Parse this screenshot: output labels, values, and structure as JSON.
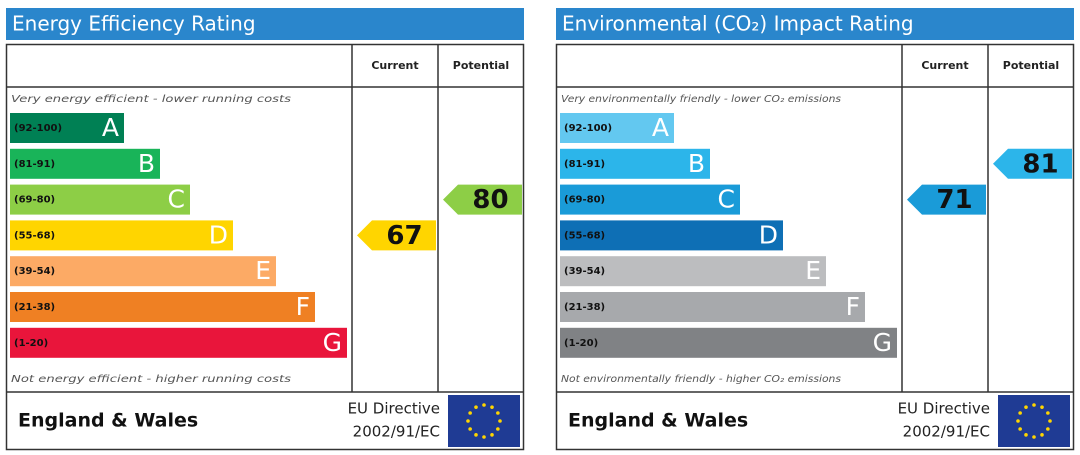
{
  "panels": [
    {
      "title": "Energy Efficiency Rating",
      "columns": [
        "Current",
        "Potential"
      ],
      "top_note": "Very energy efficient - lower running costs",
      "bottom_note": "Not energy efficient - higher running costs",
      "bands": [
        {
          "range": "(92-100)",
          "letter": "A",
          "color": "#008054"
        },
        {
          "range": "(81-91)",
          "letter": "B",
          "color": "#19b459"
        },
        {
          "range": "(69-80)",
          "letter": "C",
          "color": "#8dce46"
        },
        {
          "range": "(55-68)",
          "letter": "D",
          "color": "#ffd500"
        },
        {
          "range": "(39-54)",
          "letter": "E",
          "color": "#fcaa65"
        },
        {
          "range": "(21-38)",
          "letter": "F",
          "color": "#ef8023"
        },
        {
          "range": "(1-20)",
          "letter": "G",
          "color": "#e9153b"
        }
      ],
      "current": 67,
      "potential": 80,
      "footer": {
        "region": "England & Wales",
        "directive": "EU Directive",
        "code": "2002/91/EC"
      }
    },
    {
      "title": "Environmental (CO₂) Impact Rating",
      "columns": [
        "Current",
        "Potential"
      ],
      "top_note": "Very environmentally friendly - lower CO₂ emissions",
      "bottom_note": "Not environmentally friendly - higher CO₂ emissions",
      "bands": [
        {
          "range": "(92-100)",
          "letter": "A",
          "color": "#63c8f0"
        },
        {
          "range": "(81-91)",
          "letter": "B",
          "color": "#2cb5ea"
        },
        {
          "range": "(69-80)",
          "letter": "C",
          "color": "#1a9bd8"
        },
        {
          "range": "(55-68)",
          "letter": "D",
          "color": "#0e6fb5"
        },
        {
          "range": "(39-54)",
          "letter": "E",
          "color": "#bcbdbf"
        },
        {
          "range": "(21-38)",
          "letter": "F",
          "color": "#a7a9ac"
        },
        {
          "range": "(1-20)",
          "letter": "G",
          "color": "#808285"
        }
      ],
      "current": 71,
      "potential": 81,
      "footer": {
        "region": "England & Wales",
        "directive": "EU Directive",
        "code": "2002/91/EC"
      }
    }
  ]
}
